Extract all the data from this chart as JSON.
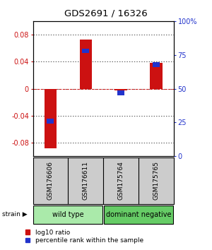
{
  "title": "GDS2691 / 16326",
  "samples": [
    "GSM176606",
    "GSM176611",
    "GSM175764",
    "GSM175765"
  ],
  "log10_ratio": [
    -0.088,
    0.073,
    -0.002,
    0.038
  ],
  "percentile_rank": [
    26,
    78,
    47,
    68
  ],
  "groups": [
    {
      "label": "wild type",
      "samples": [
        0,
        1
      ],
      "color": "#aaeaaa"
    },
    {
      "label": "dominant negative",
      "samples": [
        2,
        3
      ],
      "color": "#66cc66"
    }
  ],
  "group_label": "strain",
  "ylim": [
    -0.1,
    0.1
  ],
  "yticks_left": [
    -0.08,
    -0.04,
    0.0,
    0.04,
    0.08
  ],
  "yticks_right": [
    0,
    25,
    50,
    75,
    100
  ],
  "bar_color_red": "#cc1111",
  "bar_color_blue": "#2233cc",
  "bar_width": 0.35,
  "percentile_bar_width": 0.2,
  "background_color": "#ffffff",
  "plot_bg": "#ffffff",
  "legend_red_label": "log10 ratio",
  "legend_blue_label": "percentile rank within the sample",
  "sample_box_color": "#cccccc",
  "ytick_label_red": [
    -0.08,
    -0.04,
    0,
    0.04,
    0.08
  ],
  "ytick_label_blue": [
    "0",
    "25",
    "50",
    "75",
    "100%"
  ]
}
